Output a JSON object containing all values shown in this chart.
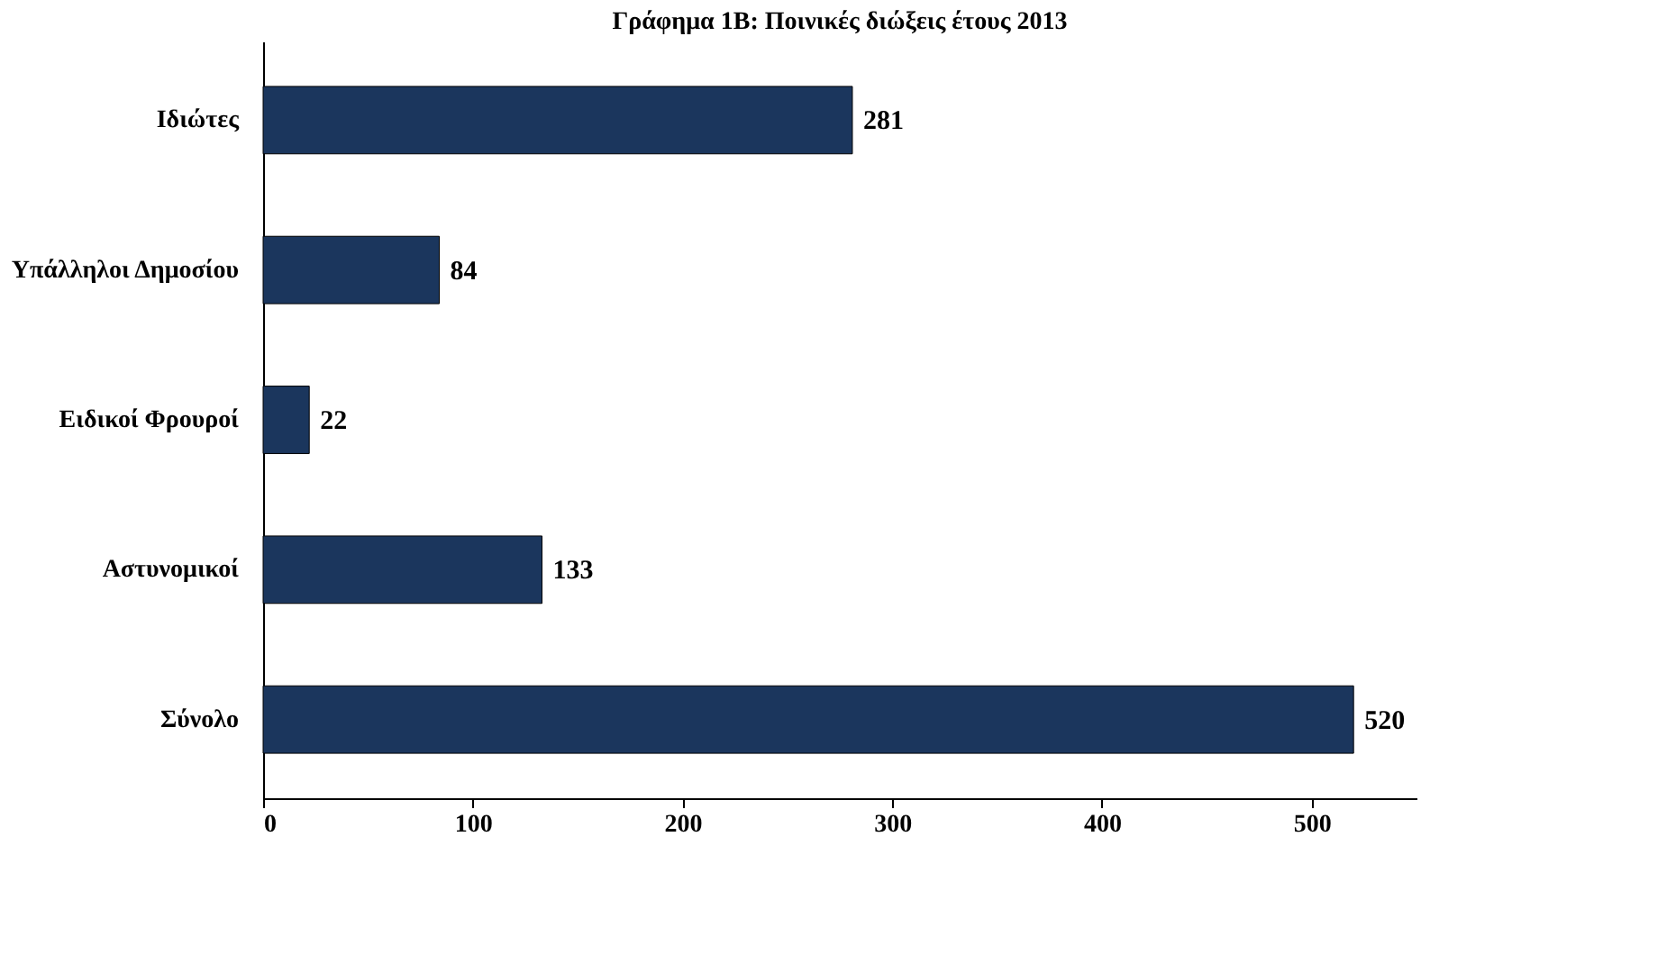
{
  "chart_data": {
    "type": "bar",
    "orientation": "horizontal",
    "title": "Γράφημα 1Β: Ποινικές διώξεις έτους 2013",
    "categories": [
      "Ιδιώτες",
      "Υπάλληλοι Δημοσίου",
      "Ειδικοί Φρουροί",
      "Αστυνομικοί",
      "Σύνολο"
    ],
    "values": [
      281,
      84,
      22,
      133,
      520
    ],
    "color": "#1b365d",
    "xlim": [
      0,
      550
    ],
    "xticks": [
      0,
      100,
      200,
      300,
      400,
      500
    ],
    "grid": false,
    "data_labels": true
  }
}
